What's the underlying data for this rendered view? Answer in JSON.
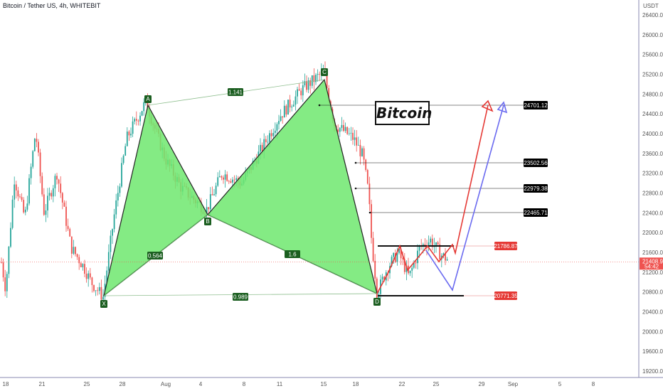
{
  "title": "Bitcoin / Tether US, 4h, WHITEBIT",
  "annotation": "Bitcoin",
  "chart_data": {
    "type": "candlestick",
    "y_axis_unit": "USDT",
    "ylim": [
      19100,
      26800
    ],
    "y_ticks": [
      "26400.00",
      "26000.00",
      "25600.00",
      "25200.00",
      "24800.00",
      "24400.00",
      "24000.00",
      "23600.00",
      "23200.00",
      "22800.00",
      "22400.00",
      "22000.00",
      "21600.00",
      "21200.00",
      "20800.00",
      "20400.00",
      "20000.00",
      "19600.00",
      "19200.00"
    ],
    "x_ticks": [
      "18",
      "21",
      "25",
      "28",
      "Aug",
      "4",
      "8",
      "11",
      "15",
      "18",
      "22",
      "25",
      "29",
      "Sep",
      "5",
      "8"
    ],
    "harmonic_pattern": {
      "points": [
        {
          "name": "X",
          "price": 20700
        },
        {
          "name": "A",
          "price": 24650
        },
        {
          "name": "B",
          "price": 22450
        },
        {
          "name": "C",
          "price": 25250
        },
        {
          "name": "D",
          "price": 20771
        }
      ],
      "ratios": [
        "1.141",
        "0.564",
        "1.6",
        "0.989"
      ]
    },
    "levels": [
      {
        "value": "24701.12",
        "color": "#000000"
      },
      {
        "value": "23502.56",
        "color": "#000000"
      },
      {
        "value": "22979.38",
        "color": "#000000"
      },
      {
        "value": "22465.71",
        "color": "#000000"
      },
      {
        "value": "21786.87",
        "color": "#e53935"
      },
      {
        "value": "20771.35",
        "color": "#e53935"
      }
    ],
    "current_price": "21408.95",
    "countdown": "54:42",
    "colors": {
      "up": "#26a69a",
      "down": "#ef5350",
      "pattern_fill": "#6ee86e",
      "pattern_line": "#222222",
      "bullish_path": "#e53935",
      "alt_path": "#6b6bf0"
    }
  }
}
